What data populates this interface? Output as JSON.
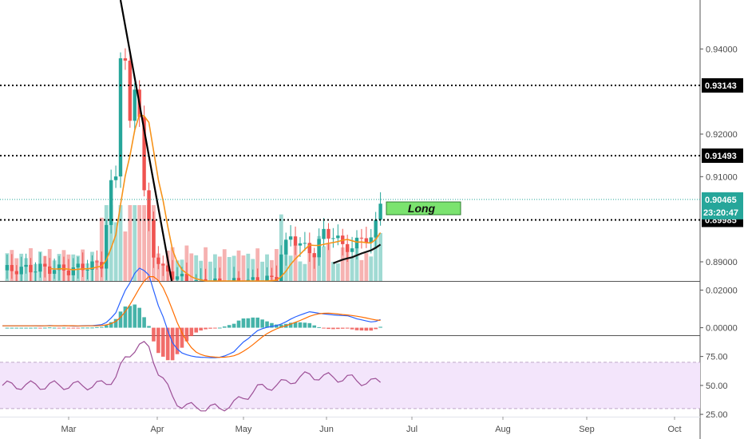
{
  "chart_data": [
    {
      "type": "candlestick",
      "panel": "price",
      "y_axis_ticks": [
        "0.94000",
        "0.92000",
        "0.91000",
        "0.89000"
      ],
      "tick_values": [
        0.94,
        0.92,
        0.91,
        0.89
      ],
      "ylim": [
        0.8855,
        0.9515
      ],
      "x_axis_ticks": [
        "Mar",
        "Apr",
        "May",
        "Jun",
        "Jul",
        "Aug",
        "Sep",
        "Oct"
      ],
      "horizontal_levels": [
        {
          "label": "0.93143",
          "value": 0.93143
        },
        {
          "label": "0.91493",
          "value": 0.91493
        },
        {
          "label": "0.89985",
          "value": 0.89985
        }
      ],
      "last_price": {
        "label": "0.90465",
        "value": 0.90465,
        "countdown": "23:20:47"
      },
      "annotation": {
        "text": "Long",
        "color": "#7be36f"
      },
      "colors": {
        "up": "#26a69a",
        "down": "#ef5350",
        "ma_orange": "#f7931a",
        "ma_black": "#111111",
        "trendline": "#000000",
        "last_price_line": "#26a69a"
      }
    },
    {
      "type": "macd",
      "panel": "macd",
      "y_axis_ticks": [
        "0.02000",
        "0.00000"
      ],
      "tick_values": [
        0.02,
        0.0
      ],
      "ylim": [
        -0.004,
        0.024
      ],
      "series": [
        {
          "color": "#2962ff"
        },
        {
          "color": "#ff6d00"
        }
      ]
    },
    {
      "type": "line",
      "panel": "rsi",
      "y_axis_ticks": [
        "75.00",
        "50.00",
        "25.00"
      ],
      "tick_values": [
        75,
        50,
        25
      ],
      "ylim": [
        23,
        92
      ],
      "band": [
        30,
        70
      ],
      "colors": {
        "line": "#9c4f96",
        "band": "#f3e5fb",
        "band_border": "#bfa6c8"
      }
    }
  ]
}
